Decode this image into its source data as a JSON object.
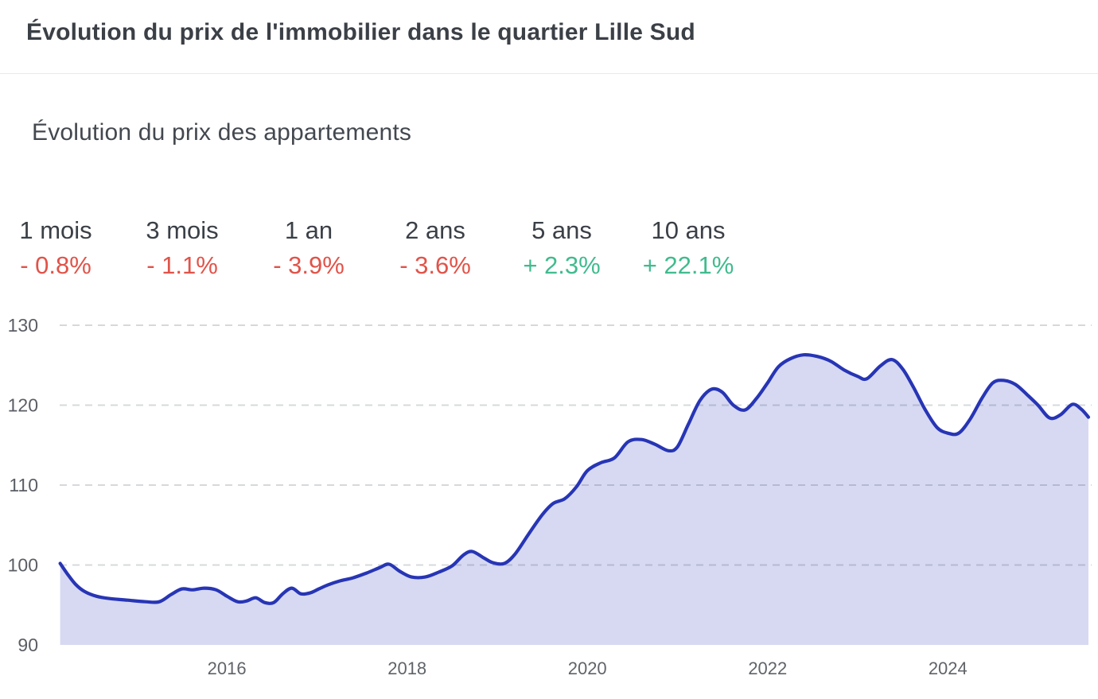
{
  "header": {
    "title": "Évolution du prix de l'immobilier dans le quartier Lille Sud"
  },
  "chart_card": {
    "subtitle": "Évolution du prix des appartements",
    "stats": [
      {
        "label": "1 mois",
        "value": "- 0.8%",
        "direction": "down"
      },
      {
        "label": "3 mois",
        "value": "- 1.1%",
        "direction": "down"
      },
      {
        "label": "1 an",
        "value": "- 3.9%",
        "direction": "down"
      },
      {
        "label": "2 ans",
        "value": "- 3.6%",
        "direction": "down"
      },
      {
        "label": "5 ans",
        "value": "+ 2.3%",
        "direction": "up"
      },
      {
        "label": "10 ans",
        "value": "+ 22.1%",
        "direction": "up"
      }
    ]
  },
  "colors": {
    "accent_line": "#2735b5",
    "area_fill": "#2735b5",
    "negative": "#e15349",
    "positive": "#40bb8e",
    "grid": "#d7d8db",
    "y_axis_text": "#5a5e64",
    "x_axis_text": "#606469"
  },
  "chart_data": {
    "type": "area",
    "title": "Évolution du prix des appartements",
    "xlabel": "",
    "ylabel": "",
    "x_ticks": [
      2016,
      2018,
      2020,
      2022,
      2024
    ],
    "y_ticks": [
      130,
      120,
      110,
      100,
      90
    ],
    "xlim": [
      2014.145,
      2025.56
    ],
    "ylim": [
      90,
      130
    ],
    "grid": "horizontal-dashed",
    "legend": "none",
    "series": [
      {
        "name": "Évolution du prix des appartements",
        "x": [
          2014.15,
          2014.23,
          2014.32,
          2014.42,
          2014.55,
          2014.7,
          2014.9,
          2015.1,
          2015.25,
          2015.38,
          2015.5,
          2015.62,
          2015.75,
          2015.88,
          2016.0,
          2016.12,
          2016.22,
          2016.32,
          2016.42,
          2016.52,
          2016.62,
          2016.72,
          2016.82,
          2016.92,
          2017.02,
          2017.12,
          2017.25,
          2017.4,
          2017.55,
          2017.7,
          2017.8,
          2017.92,
          2018.05,
          2018.2,
          2018.35,
          2018.5,
          2018.62,
          2018.72,
          2018.85,
          2018.95,
          2019.08,
          2019.2,
          2019.35,
          2019.5,
          2019.62,
          2019.75,
          2019.88,
          2020.0,
          2020.15,
          2020.3,
          2020.45,
          2020.6,
          2020.75,
          2020.9,
          2021.0,
          2021.12,
          2021.25,
          2021.38,
          2021.5,
          2021.62,
          2021.75,
          2021.88,
          2022.0,
          2022.12,
          2022.25,
          2022.4,
          2022.55,
          2022.7,
          2022.85,
          2023.0,
          2023.1,
          2023.25,
          2023.38,
          2023.5,
          2023.62,
          2023.75,
          2023.88,
          2024.0,
          2024.12,
          2024.25,
          2024.38,
          2024.5,
          2024.62,
          2024.75,
          2024.88,
          2025.0,
          2025.13,
          2025.25,
          2025.38,
          2025.48,
          2025.56
        ],
        "values": [
          100.2,
          98.9,
          97.6,
          96.7,
          96.1,
          95.8,
          95.6,
          95.4,
          95.4,
          96.3,
          97.0,
          96.9,
          97.1,
          96.9,
          96.1,
          95.4,
          95.5,
          95.9,
          95.3,
          95.3,
          96.4,
          97.1,
          96.4,
          96.5,
          97.0,
          97.5,
          98.0,
          98.4,
          99.0,
          99.7,
          100.1,
          99.2,
          98.5,
          98.5,
          99.1,
          99.9,
          101.2,
          101.7,
          100.9,
          100.3,
          100.2,
          101.4,
          103.9,
          106.3,
          107.7,
          108.3,
          109.8,
          111.8,
          112.8,
          113.4,
          115.4,
          115.7,
          115.1,
          114.3,
          114.8,
          117.6,
          120.6,
          122.0,
          121.6,
          120.0,
          119.4,
          120.9,
          122.8,
          124.8,
          125.8,
          126.3,
          126.1,
          125.5,
          124.4,
          123.6,
          123.3,
          124.9,
          125.7,
          124.5,
          122.2,
          119.4,
          117.2,
          116.5,
          116.5,
          118.3,
          120.9,
          122.8,
          123.1,
          122.6,
          121.3,
          120.0,
          118.4,
          118.8,
          120.1,
          119.5,
          118.5
        ]
      }
    ]
  }
}
